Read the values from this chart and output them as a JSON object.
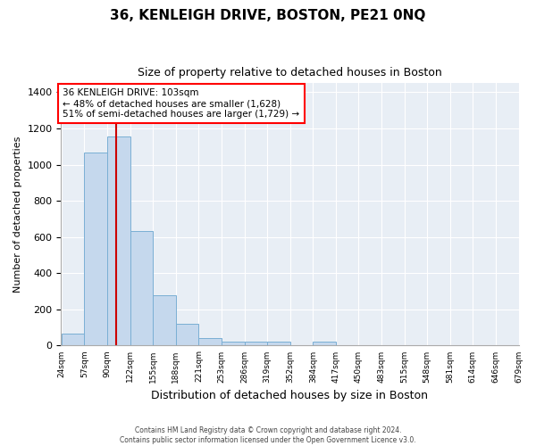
{
  "title": "36, KENLEIGH DRIVE, BOSTON, PE21 0NQ",
  "subtitle": "Size of property relative to detached houses in Boston",
  "xlabel": "Distribution of detached houses by size in Boston",
  "ylabel": "Number of detached properties",
  "bar_values": [
    65,
    1065,
    1155,
    635,
    280,
    120,
    40,
    20,
    20,
    20,
    0,
    20,
    0,
    0,
    0,
    0,
    0,
    0,
    0,
    0
  ],
  "bin_labels": [
    "24sqm",
    "57sqm",
    "90sqm",
    "122sqm",
    "155sqm",
    "188sqm",
    "221sqm",
    "253sqm",
    "286sqm",
    "319sqm",
    "352sqm",
    "384sqm",
    "417sqm",
    "450sqm",
    "483sqm",
    "515sqm",
    "548sqm",
    "581sqm",
    "614sqm",
    "646sqm",
    "679sqm"
  ],
  "bar_color": "#c5d8ed",
  "bar_edge_color": "#7aafd4",
  "annotation_text": "36 KENLEIGH DRIVE: 103sqm\n← 48% of detached houses are smaller (1,628)\n51% of semi-detached houses are larger (1,729) →",
  "ylim": [
    0,
    1450
  ],
  "yticks": [
    0,
    200,
    400,
    600,
    800,
    1000,
    1200,
    1400
  ],
  "footer_line1": "Contains HM Land Registry data © Crown copyright and database right 2024.",
  "footer_line2": "Contains public sector information licensed under the Open Government Licence v3.0.",
  "background_color": "#ffffff",
  "plot_background": "#e8eef5",
  "grid_color": "#ffffff",
  "red_line_color": "#cc0000",
  "title_fontsize": 11,
  "subtitle_fontsize": 9,
  "ylabel_fontsize": 8,
  "xlabel_fontsize": 9
}
